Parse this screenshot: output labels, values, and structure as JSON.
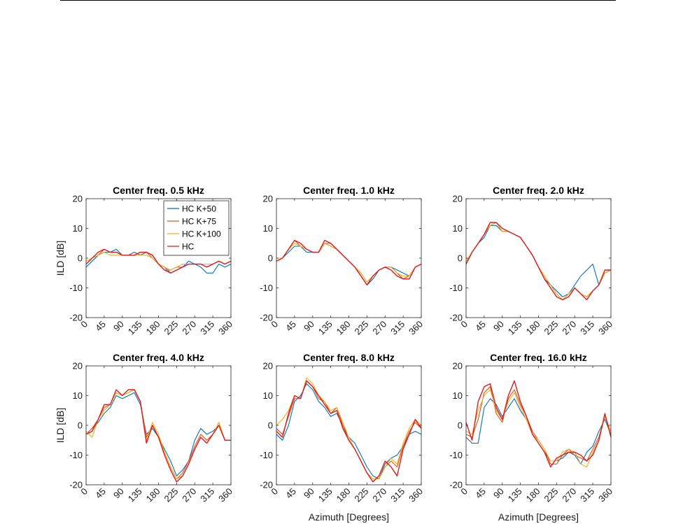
{
  "colors": {
    "HC K+50": "#0072BD",
    "HC K+75": "#D95319",
    "HC K+100": "#EDB120",
    "HC": "#E41A1C"
  },
  "legend": {
    "placement": "top-right",
    "entries": [
      "HC K+50",
      "HC K+75",
      "HC K+100",
      "HC"
    ]
  },
  "chart_data": [
    {
      "type": "line",
      "title": "Center freq. 0.5 kHz",
      "xlabel": "",
      "ylabel": "ILD [dB]",
      "xlim": [
        0,
        360
      ],
      "ylim": [
        -20,
        20
      ],
      "xticks": [
        0,
        45,
        90,
        135,
        180,
        225,
        270,
        315,
        360
      ],
      "yticks": [
        20,
        10,
        0,
        -10,
        -20
      ],
      "legend": true,
      "x": [
        0,
        15,
        30,
        45,
        60,
        75,
        90,
        105,
        120,
        135,
        150,
        165,
        180,
        195,
        210,
        225,
        240,
        255,
        270,
        285,
        300,
        315,
        330,
        345,
        360
      ],
      "series": [
        {
          "name": "HC K+50",
          "values": [
            -3,
            -1,
            1,
            2,
            2,
            3,
            1,
            1,
            2,
            1,
            2,
            1,
            -2,
            -3,
            -5,
            -4,
            -3,
            -1,
            -2,
            -3,
            -5,
            -5,
            -2,
            -3,
            -2
          ]
        },
        {
          "name": "HC K+75",
          "values": [
            -2,
            0,
            1,
            3,
            2,
            2,
            1,
            1,
            1,
            2,
            2,
            0,
            -2,
            -4,
            -4,
            -3,
            -3,
            -2,
            -2,
            -2,
            -3,
            -2,
            -1,
            -2,
            -1
          ]
        },
        {
          "name": "HC K+100",
          "values": [
            -1,
            0,
            1,
            2,
            1,
            1,
            1,
            1,
            1,
            1,
            1,
            0,
            -2,
            -3,
            -4,
            -3,
            -2,
            -2,
            -2,
            -2,
            -2,
            -2,
            -1,
            -2,
            -1
          ]
        },
        {
          "name": "HC",
          "values": [
            -2,
            0,
            2,
            3,
            2,
            2,
            1,
            1,
            1,
            2,
            2,
            1,
            -2,
            -4,
            -5,
            -4,
            -3,
            -2,
            -2,
            -2,
            -3,
            -2,
            -1,
            -2,
            -1
          ]
        }
      ]
    },
    {
      "type": "line",
      "title": "Center freq. 1.0 kHz",
      "xlabel": "",
      "ylabel": "",
      "xlim": [
        0,
        360
      ],
      "ylim": [
        -20,
        20
      ],
      "xticks": [
        0,
        45,
        90,
        135,
        180,
        225,
        270,
        315,
        360
      ],
      "yticks": [
        20,
        10,
        0,
        -10,
        -20
      ],
      "legend": false,
      "x": [
        0,
        15,
        30,
        45,
        60,
        75,
        90,
        105,
        120,
        135,
        150,
        165,
        180,
        195,
        210,
        225,
        240,
        255,
        270,
        285,
        300,
        315,
        330,
        345,
        360
      ],
      "series": [
        {
          "name": "HC K+50",
          "values": [
            -1,
            0,
            2,
            4,
            4,
            2,
            2,
            2,
            5,
            4,
            3,
            1,
            -1,
            -3,
            -6,
            -9,
            -7,
            -4,
            -3,
            -3,
            -4,
            -5,
            -6,
            -3,
            -2
          ]
        },
        {
          "name": "HC K+75",
          "values": [
            0,
            0,
            3,
            6,
            4,
            3,
            2,
            2,
            5,
            5,
            3,
            1,
            -1,
            -3,
            -5,
            -8,
            -6,
            -4,
            -3,
            -3,
            -5,
            -7,
            -6,
            -3,
            -2
          ]
        },
        {
          "name": "HC K+100",
          "values": [
            0,
            0,
            3,
            5,
            4,
            3,
            2,
            2,
            5,
            4,
            3,
            1,
            -1,
            -3,
            -5,
            -8,
            -6,
            -4,
            -3,
            -3,
            -5,
            -6,
            -6,
            -3,
            -2
          ]
        },
        {
          "name": "HC",
          "values": [
            -1,
            0,
            3,
            6,
            5,
            3,
            2,
            2,
            6,
            5,
            3,
            1,
            -1,
            -3,
            -6,
            -9,
            -6,
            -4,
            -3,
            -4,
            -6,
            -7,
            -7,
            -3,
            -2
          ]
        }
      ]
    },
    {
      "type": "line",
      "title": "Center freq. 2.0 kHz",
      "xlabel": "",
      "ylabel": "",
      "xlim": [
        0,
        360
      ],
      "ylim": [
        -20,
        20
      ],
      "xticks": [
        0,
        45,
        90,
        135,
        180,
        225,
        270,
        315,
        360
      ],
      "yticks": [
        20,
        10,
        0,
        -10,
        -20
      ],
      "legend": false,
      "x": [
        0,
        15,
        30,
        45,
        60,
        75,
        90,
        105,
        120,
        135,
        150,
        165,
        180,
        195,
        210,
        225,
        240,
        255,
        270,
        285,
        300,
        315,
        330,
        345,
        360
      ],
      "series": [
        {
          "name": "HC K+50",
          "values": [
            -2,
            2,
            5,
            7,
            11,
            11,
            9,
            9,
            8,
            7,
            4,
            1,
            -3,
            -7,
            -9,
            -11,
            -13,
            -12,
            -9,
            -6,
            -4,
            -2,
            -9,
            -5,
            -4
          ]
        },
        {
          "name": "HC K+75",
          "values": [
            -1,
            2,
            5,
            8,
            11,
            12,
            9,
            9,
            8,
            7,
            4,
            1,
            -3,
            -6,
            -9,
            -12,
            -14,
            -12,
            -10,
            -12,
            -13,
            -11,
            -9,
            -5,
            -4
          ]
        },
        {
          "name": "HC K+100",
          "values": [
            -1,
            2,
            5,
            8,
            11,
            12,
            9,
            9,
            8,
            7,
            4,
            1,
            -3,
            -6,
            -9,
            -12,
            -14,
            -12,
            -10,
            -12,
            -13,
            -11,
            -9,
            -5,
            -4
          ]
        },
        {
          "name": "HC",
          "values": [
            -2,
            2,
            5,
            8,
            12,
            12,
            10,
            9,
            8,
            7,
            4,
            1,
            -3,
            -7,
            -10,
            -13,
            -14,
            -13,
            -10,
            -12,
            -14,
            -11,
            -9,
            -4,
            -4
          ]
        }
      ]
    },
    {
      "type": "line",
      "title": "Center freq. 4.0 kHz",
      "xlabel": "",
      "ylabel": "ILD [dB]",
      "xlim": [
        0,
        360
      ],
      "ylim": [
        -20,
        20
      ],
      "xticks": [
        0,
        45,
        90,
        135,
        180,
        225,
        270,
        315,
        360
      ],
      "yticks": [
        20,
        10,
        0,
        -10,
        -20
      ],
      "legend": false,
      "x": [
        0,
        15,
        30,
        45,
        60,
        75,
        90,
        105,
        120,
        135,
        150,
        165,
        180,
        195,
        210,
        225,
        240,
        255,
        270,
        285,
        300,
        315,
        330,
        345,
        360
      ],
      "series": [
        {
          "name": "HC K+50",
          "values": [
            -3,
            -1,
            1,
            4,
            6,
            10,
            9,
            10,
            11,
            7,
            -3,
            -1,
            -4,
            -8,
            -12,
            -17,
            -15,
            -12,
            -5,
            -1,
            -3,
            -2,
            0,
            -5,
            -5
          ]
        },
        {
          "name": "HC K+75",
          "values": [
            -3,
            -1,
            2,
            6,
            7,
            11,
            10,
            11,
            12,
            8,
            -4,
            0,
            -4,
            -9,
            -14,
            -18,
            -16,
            -12,
            -7,
            -3,
            -5,
            -3,
            1,
            -5,
            -5
          ]
        },
        {
          "name": "HC K+100",
          "values": [
            -2,
            -4,
            2,
            5,
            7,
            11,
            10,
            11,
            12,
            8,
            -5,
            1,
            -3,
            -9,
            -14,
            -18,
            -17,
            -13,
            -8,
            -4,
            -6,
            -3,
            1,
            -5,
            -5
          ]
        },
        {
          "name": "HC",
          "values": [
            -3,
            -2,
            2,
            7,
            7,
            12,
            10,
            12,
            12,
            8,
            -6,
            0,
            -4,
            -10,
            -15,
            -19,
            -17,
            -13,
            -8,
            -4,
            -6,
            -3,
            0,
            -5,
            -5
          ]
        }
      ]
    },
    {
      "type": "line",
      "title": "Center freq. 8.0 kHz",
      "xlabel": "Azimuth [Degrees]",
      "ylabel": "",
      "xlim": [
        0,
        360
      ],
      "ylim": [
        -20,
        20
      ],
      "xticks": [
        0,
        45,
        90,
        135,
        180,
        225,
        270,
        315,
        360
      ],
      "yticks": [
        20,
        10,
        0,
        -10,
        -20
      ],
      "legend": false,
      "x": [
        0,
        15,
        30,
        45,
        60,
        75,
        90,
        105,
        120,
        135,
        150,
        165,
        180,
        195,
        210,
        225,
        240,
        255,
        270,
        285,
        300,
        315,
        330,
        345,
        360
      ],
      "series": [
        {
          "name": "HC K+50",
          "values": [
            -3,
            -5,
            0,
            8,
            10,
            14,
            12,
            8,
            6,
            3,
            4,
            0,
            -4,
            -6,
            -10,
            -14,
            -17,
            -18,
            -13,
            -11,
            -10,
            -7,
            -3,
            -2,
            -3
          ]
        },
        {
          "name": "HC K+75",
          "values": [
            -1,
            -3,
            3,
            9,
            9,
            15,
            13,
            9,
            8,
            4,
            6,
            0,
            -5,
            -8,
            -12,
            -16,
            -18,
            -18,
            -14,
            -12,
            -14,
            -7,
            -2,
            1,
            -1
          ]
        },
        {
          "name": "HC K+100",
          "values": [
            0,
            2,
            5,
            10,
            9,
            16,
            14,
            10,
            8,
            5,
            6,
            1,
            -4,
            -8,
            -12,
            -16,
            -18,
            -18,
            -14,
            -11,
            -13,
            -6,
            -1,
            2,
            0
          ]
        },
        {
          "name": "HC",
          "values": [
            -2,
            -4,
            4,
            10,
            9,
            15,
            13,
            10,
            7,
            4,
            5,
            -1,
            -5,
            -8,
            -12,
            -16,
            -19,
            -17,
            -12,
            -14,
            -17,
            -8,
            -3,
            2,
            -1
          ]
        }
      ]
    },
    {
      "type": "line",
      "title": "Center freq. 16.0 kHz",
      "xlabel": "Azimuth [Degrees]",
      "ylabel": "",
      "xlim": [
        0,
        360
      ],
      "ylim": [
        -20,
        20
      ],
      "xticks": [
        0,
        45,
        90,
        135,
        180,
        225,
        270,
        315,
        360
      ],
      "yticks": [
        20,
        10,
        0,
        -10,
        -20
      ],
      "legend": false,
      "x": [
        0,
        15,
        30,
        45,
        60,
        75,
        90,
        105,
        120,
        135,
        150,
        165,
        180,
        195,
        210,
        225,
        240,
        255,
        270,
        285,
        300,
        315,
        330,
        345,
        360
      ],
      "series": [
        {
          "name": "HC K+50",
          "values": [
            -4,
            -6,
            -6,
            6,
            9,
            7,
            3,
            6,
            9,
            5,
            2,
            -3,
            -6,
            -9,
            -12,
            -12,
            -11,
            -9,
            -10,
            -13,
            -9,
            -7,
            -2,
            2,
            -3
          ]
        },
        {
          "name": "HC K+75",
          "values": [
            -3,
            -4,
            2,
            11,
            13,
            4,
            1,
            9,
            12,
            7,
            3,
            -2,
            -5,
            -8,
            -13,
            -13,
            -10,
            -8,
            -10,
            -11,
            -12,
            -8,
            -4,
            3,
            -2
          ]
        },
        {
          "name": "HC K+100",
          "values": [
            -2,
            -3,
            5,
            10,
            12,
            5,
            2,
            8,
            11,
            6,
            2,
            -3,
            -5,
            -8,
            -12,
            -12,
            -9,
            -8,
            -9,
            -13,
            -14,
            -9,
            -5,
            3,
            -2
          ]
        },
        {
          "name": "HC",
          "values": [
            1,
            -5,
            8,
            13,
            14,
            6,
            2,
            10,
            15,
            8,
            3,
            -3,
            -6,
            -9,
            -14,
            -11,
            -10,
            -9,
            -9,
            -10,
            -12,
            -10,
            -5,
            4,
            -4
          ]
        }
      ]
    }
  ]
}
